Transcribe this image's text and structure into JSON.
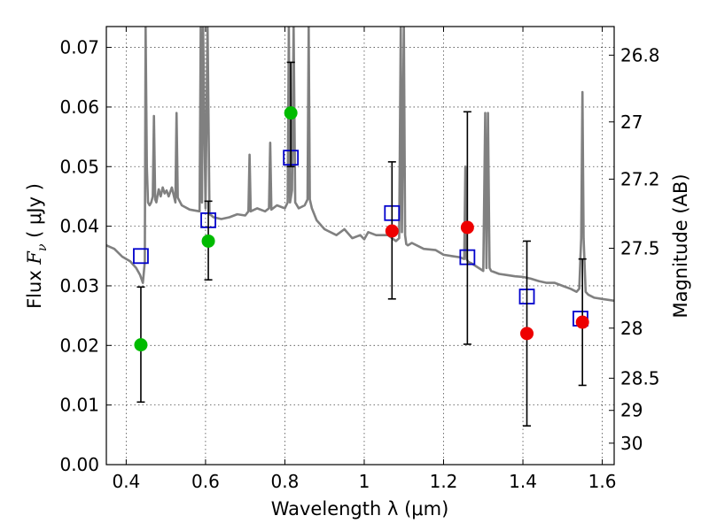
{
  "chart_data": {
    "type": "scatter",
    "xlabel": "Wavelength  λ (μm)",
    "ylabel": "Flux  F_ν  ( μJy )",
    "ylabel_parts": {
      "prefix": "Flux  ",
      "symbol": "F",
      "subscript": "ν",
      "suffix": "  ( μJy )"
    },
    "y2label": "Magnitude (AB)",
    "xlim": [
      0.35,
      1.63
    ],
    "ylim": [
      0.0,
      0.0735
    ],
    "x_ticks": [
      0.4,
      0.6,
      0.8,
      1.0,
      1.2,
      1.4,
      1.6
    ],
    "x_tick_labels": [
      "0.4",
      "0.6",
      "0.8",
      "1",
      "1.2",
      "1.4",
      "1.6"
    ],
    "y_ticks": [
      0.0,
      0.01,
      0.02,
      0.03,
      0.04,
      0.05,
      0.06,
      0.07
    ],
    "y_tick_labels": [
      "0.00",
      "0.01",
      "0.02",
      "0.03",
      "0.04",
      "0.05",
      "0.06",
      "0.07"
    ],
    "y2_ticks": [
      {
        "label": "26.8",
        "flux": 0.0687
      },
      {
        "label": "27",
        "flux": 0.0575
      },
      {
        "label": "27.2",
        "flux": 0.0479
      },
      {
        "label": "27.5",
        "flux": 0.0363
      },
      {
        "label": "28",
        "flux": 0.0229
      },
      {
        "label": "28.5",
        "flux": 0.0145
      },
      {
        "label": "29",
        "flux": 0.0091
      },
      {
        "label": "30",
        "flux": 0.0036
      }
    ],
    "grid": true,
    "colors": {
      "model": "#808080",
      "model_flux": "#0000cc",
      "green": "#00bb00",
      "red": "#ee0000",
      "errorbar": "#000000"
    },
    "series": [
      {
        "kind": "line",
        "style": "model",
        "x": [
          0.35,
          0.37,
          0.39,
          0.41,
          0.425,
          0.435,
          0.442,
          0.447,
          0.449,
          0.452,
          0.455,
          0.459,
          0.463,
          0.467,
          0.47,
          0.473,
          0.476,
          0.482,
          0.487,
          0.492,
          0.497,
          0.502,
          0.507,
          0.515,
          0.524,
          0.527,
          0.53,
          0.54,
          0.56,
          0.585,
          0.588,
          0.591,
          0.594,
          0.6,
          0.605,
          0.61,
          0.615,
          0.62,
          0.64,
          0.66,
          0.68,
          0.7,
          0.708,
          0.711,
          0.714,
          0.73,
          0.75,
          0.76,
          0.763,
          0.766,
          0.78,
          0.8,
          0.807,
          0.81,
          0.813,
          0.818,
          0.822,
          0.826,
          0.835,
          0.85,
          0.857,
          0.86,
          0.863,
          0.868,
          0.88,
          0.9,
          0.93,
          0.95,
          0.97,
          0.99,
          1.0,
          1.01,
          1.03,
          1.06,
          1.08,
          1.088,
          1.092,
          1.095,
          1.1,
          1.103,
          1.106,
          1.11,
          1.12,
          1.15,
          1.18,
          1.2,
          1.22,
          1.24,
          1.252,
          1.255,
          1.258,
          1.262,
          1.27,
          1.3,
          1.305,
          1.308,
          1.312,
          1.316,
          1.32,
          1.34,
          1.36,
          1.38,
          1.4,
          1.42,
          1.44,
          1.46,
          1.48,
          1.5,
          1.52,
          1.535,
          1.542,
          1.547,
          1.55,
          1.553,
          1.558,
          1.565,
          1.58,
          1.6,
          1.63
        ],
        "y": [
          0.0368,
          0.0362,
          0.0349,
          0.0341,
          0.033,
          0.0318,
          0.0305,
          0.034,
          0.0735,
          0.05,
          0.044,
          0.0435,
          0.044,
          0.045,
          0.0585,
          0.0445,
          0.044,
          0.0462,
          0.045,
          0.0465,
          0.0455,
          0.046,
          0.045,
          0.0465,
          0.044,
          0.059,
          0.0448,
          0.0435,
          0.0428,
          0.0425,
          0.0735,
          0.044,
          0.0735,
          0.043,
          0.0735,
          0.042,
          0.0418,
          0.0415,
          0.0412,
          0.0415,
          0.042,
          0.0418,
          0.0425,
          0.052,
          0.0425,
          0.043,
          0.0425,
          0.043,
          0.054,
          0.0428,
          0.0435,
          0.043,
          0.044,
          0.0735,
          0.044,
          0.046,
          0.0735,
          0.044,
          0.043,
          0.0435,
          0.0445,
          0.0735,
          0.0445,
          0.043,
          0.041,
          0.0395,
          0.0385,
          0.0395,
          0.038,
          0.0385,
          0.0378,
          0.039,
          0.0385,
          0.0385,
          0.0375,
          0.038,
          0.0735,
          0.039,
          0.0735,
          0.0385,
          0.037,
          0.0368,
          0.0372,
          0.0362,
          0.036,
          0.0352,
          0.035,
          0.0348,
          0.0345,
          0.05,
          0.0345,
          0.034,
          0.0338,
          0.0325,
          0.059,
          0.033,
          0.059,
          0.033,
          0.0325,
          0.032,
          0.0318,
          0.0316,
          0.0315,
          0.0312,
          0.0308,
          0.0305,
          0.0305,
          0.03,
          0.0295,
          0.029,
          0.0295,
          0.038,
          0.0625,
          0.038,
          0.029,
          0.0285,
          0.028,
          0.0278,
          0.0275
        ]
      },
      {
        "kind": "points",
        "style": "model-flux",
        "x": [
          0.437,
          0.607,
          0.815,
          1.07,
          1.26,
          1.41,
          1.545
        ],
        "y": [
          0.035,
          0.041,
          0.0515,
          0.0422,
          0.0348,
          0.0282,
          0.0245
        ]
      },
      {
        "kind": "points",
        "style": "green",
        "x": [
          0.437,
          0.607,
          0.815
        ],
        "y": [
          0.0201,
          0.0375,
          0.059
        ]
      },
      {
        "kind": "points",
        "style": "red",
        "x": [
          1.07,
          1.26,
          1.41,
          1.55
        ],
        "y": [
          0.0392,
          0.0398,
          0.022,
          0.0239
        ]
      },
      {
        "kind": "errorbars",
        "x": [
          0.437,
          0.607,
          0.815,
          1.07,
          1.26,
          1.41,
          1.55
        ],
        "low": [
          0.0105,
          0.031,
          0.05,
          0.0278,
          0.0202,
          0.0065,
          0.0133
        ],
        "high": [
          0.0298,
          0.0442,
          0.0675,
          0.0508,
          0.0592,
          0.0375,
          0.0345
        ]
      }
    ]
  }
}
